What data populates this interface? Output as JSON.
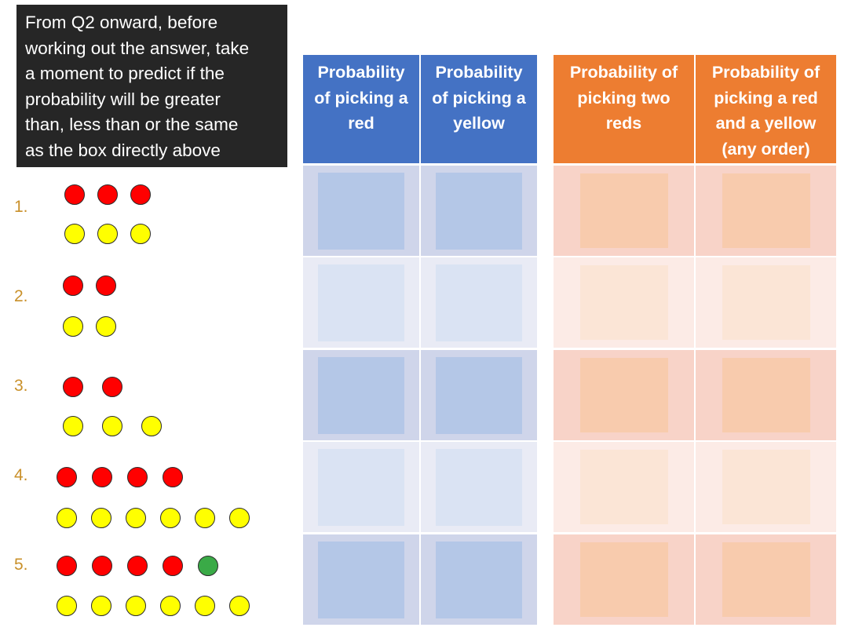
{
  "instruction": {
    "lines": [
      "From Q2 onward, before",
      "working out the answer, take",
      "a moment to predict if the",
      "probability will be greater",
      "than, less than or the same",
      "as the box directly above"
    ]
  },
  "headers": [
    {
      "lines": [
        "Probability",
        "of picking a",
        "red"
      ]
    },
    {
      "lines": [
        "Probability",
        "of picking a",
        "yellow"
      ]
    },
    {
      "lines": [
        "Probability of",
        "picking two",
        "reds"
      ]
    },
    {
      "lines": [
        "Probability of",
        "picking a red",
        "and a yellow",
        "(any order)"
      ]
    }
  ],
  "questions": [
    {
      "label": "1.",
      "top_row": [
        "red",
        "red",
        "red"
      ],
      "bottom_row": [
        "yellow",
        "yellow",
        "yellow"
      ]
    },
    {
      "label": "2.",
      "top_row": [
        "red",
        "red"
      ],
      "bottom_row": [
        "yellow",
        "yellow"
      ]
    },
    {
      "label": "3.",
      "top_row": [
        "red",
        "red"
      ],
      "bottom_row": [
        "yellow",
        "yellow",
        "yellow"
      ]
    },
    {
      "label": "4.",
      "top_row": [
        "red",
        "red",
        "red",
        "red"
      ],
      "bottom_row": [
        "yellow",
        "yellow",
        "yellow",
        "yellow",
        "yellow",
        "yellow"
      ]
    },
    {
      "label": "5.",
      "top_row": [
        "red",
        "red",
        "red",
        "red",
        "green"
      ],
      "bottom_row": [
        "yellow",
        "yellow",
        "yellow",
        "yellow",
        "yellow",
        "yellow"
      ]
    }
  ],
  "colors": {
    "blue_header": "#4472c4",
    "orange_header": "#ed7d31",
    "blue_cell_dark": "#cfd5ea",
    "blue_cell_light": "#e9ebf5",
    "blue_box_dark": "#b4c7e7",
    "blue_box_light": "#dae3f3",
    "orange_cell_dark": "#f8d3c8",
    "orange_cell_light": "#fcebe6",
    "orange_box_dark": "#f8cbad",
    "orange_box_light": "#fbe5d6",
    "label": "#c9902a"
  }
}
